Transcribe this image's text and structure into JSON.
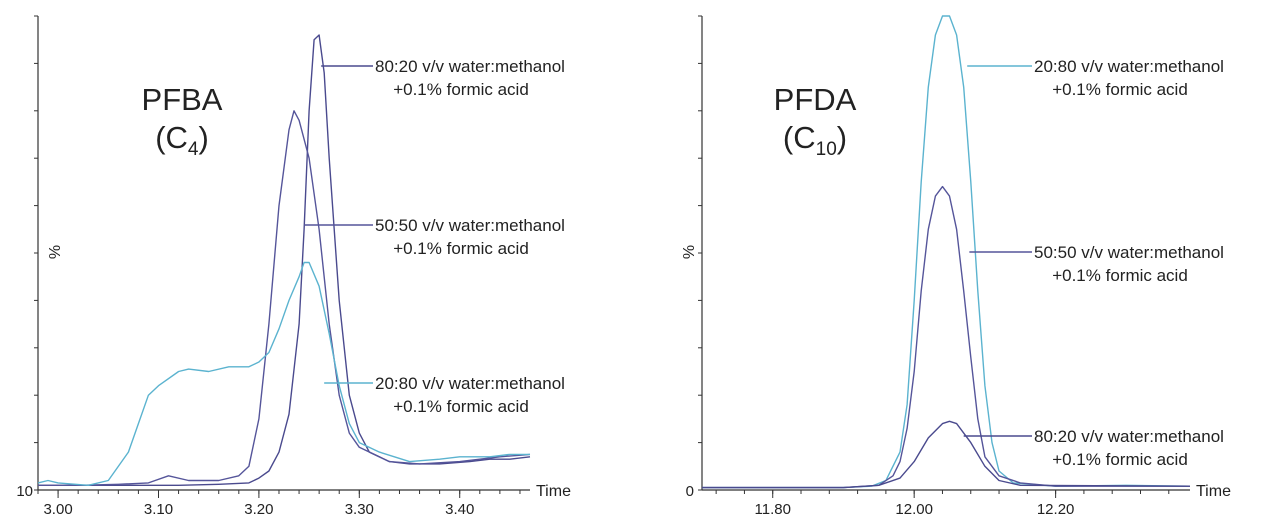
{
  "chart_data": [
    {
      "type": "line",
      "compound_name": "PFBA",
      "compound_formula": "(C",
      "compound_subscript": "4",
      "compound_close": ")",
      "xlabel": "Time",
      "ylabel": "%",
      "y_origin_label": "10",
      "xlim": [
        2.98,
        3.47
      ],
      "ylim": [
        0,
        100
      ],
      "x_ticks": [
        3.0,
        3.1,
        3.2,
        3.3,
        3.4
      ],
      "x_tick_labels": [
        "3.00",
        "3.10",
        "3.20",
        "3.30",
        "3.40"
      ],
      "series": [
        {
          "name": "80:20 v/v water:methanol",
          "name_line2": "+0.1% formic acid",
          "color": "#4a4a8e",
          "points": [
            [
              2.98,
              1
            ],
            [
              3.0,
              1
            ],
            [
              3.04,
              1
            ],
            [
              3.08,
              1
            ],
            [
              3.12,
              1
            ],
            [
              3.16,
              1.2
            ],
            [
              3.19,
              1.5
            ],
            [
              3.2,
              2.5
            ],
            [
              3.21,
              4
            ],
            [
              3.22,
              8
            ],
            [
              3.23,
              16
            ],
            [
              3.24,
              35
            ],
            [
              3.245,
              55
            ],
            [
              3.25,
              80
            ],
            [
              3.255,
              95
            ],
            [
              3.26,
              96
            ],
            [
              3.265,
              88
            ],
            [
              3.27,
              70
            ],
            [
              3.28,
              40
            ],
            [
              3.29,
              20
            ],
            [
              3.3,
              12
            ],
            [
              3.31,
              8
            ],
            [
              3.33,
              6
            ],
            [
              3.35,
              5.5
            ],
            [
              3.38,
              5.5
            ],
            [
              3.41,
              6
            ],
            [
              3.43,
              6.5
            ],
            [
              3.45,
              6.5
            ],
            [
              3.47,
              7
            ]
          ]
        },
        {
          "name": "50:50 v/v water:methanol",
          "name_line2": "+0.1% formic acid",
          "color": "#55559a",
          "points": [
            [
              2.98,
              1
            ],
            [
              3.02,
              1
            ],
            [
              3.06,
              1.2
            ],
            [
              3.09,
              1.5
            ],
            [
              3.11,
              3
            ],
            [
              3.13,
              2
            ],
            [
              3.16,
              2
            ],
            [
              3.18,
              3
            ],
            [
              3.19,
              5
            ],
            [
              3.2,
              15
            ],
            [
              3.21,
              35
            ],
            [
              3.22,
              60
            ],
            [
              3.23,
              76
            ],
            [
              3.235,
              80
            ],
            [
              3.24,
              78
            ],
            [
              3.25,
              70
            ],
            [
              3.26,
              55
            ],
            [
              3.27,
              35
            ],
            [
              3.28,
              20
            ],
            [
              3.29,
              12
            ],
            [
              3.3,
              9
            ],
            [
              3.33,
              6
            ],
            [
              3.36,
              5.5
            ],
            [
              3.4,
              6
            ],
            [
              3.44,
              7
            ],
            [
              3.47,
              7.5
            ]
          ]
        },
        {
          "name": "20:80 v/v water:methanol",
          "name_line2": "+0.1% formic acid",
          "color": "#5bb3cf",
          "points": [
            [
              2.98,
              1.5
            ],
            [
              2.99,
              2
            ],
            [
              3.0,
              1.5
            ],
            [
              3.03,
              1
            ],
            [
              3.05,
              2
            ],
            [
              3.07,
              8
            ],
            [
              3.08,
              14
            ],
            [
              3.09,
              20
            ],
            [
              3.1,
              22
            ],
            [
              3.12,
              25
            ],
            [
              3.13,
              25.5
            ],
            [
              3.15,
              25
            ],
            [
              3.17,
              26
            ],
            [
              3.19,
              26
            ],
            [
              3.2,
              27
            ],
            [
              3.21,
              29
            ],
            [
              3.22,
              34
            ],
            [
              3.23,
              40
            ],
            [
              3.24,
              45
            ],
            [
              3.245,
              48
            ],
            [
              3.25,
              48
            ],
            [
              3.26,
              43
            ],
            [
              3.27,
              33
            ],
            [
              3.28,
              22
            ],
            [
              3.29,
              14
            ],
            [
              3.3,
              10
            ],
            [
              3.32,
              8
            ],
            [
              3.35,
              6
            ],
            [
              3.38,
              6.5
            ],
            [
              3.4,
              7
            ],
            [
              3.43,
              7
            ],
            [
              3.45,
              7.5
            ],
            [
              3.47,
              7.5
            ]
          ]
        }
      ]
    },
    {
      "type": "line",
      "compound_name": "PFDA",
      "compound_formula": "(C",
      "compound_subscript": "10",
      "compound_close": ")",
      "xlabel": "Time",
      "ylabel": "%",
      "y_origin_label": "0",
      "xlim": [
        11.7,
        12.39
      ],
      "ylim": [
        0,
        100
      ],
      "x_ticks": [
        11.8,
        12.0,
        12.2
      ],
      "x_tick_labels": [
        "11.80",
        "12.00",
        "12.20"
      ],
      "series": [
        {
          "name": "20:80 v/v water:methanol",
          "name_line2": "+0.1% formic acid",
          "color": "#5bb3cf",
          "points": [
            [
              11.7,
              0.5
            ],
            [
              11.8,
              0.5
            ],
            [
              11.9,
              0.5
            ],
            [
              11.94,
              0.8
            ],
            [
              11.96,
              2
            ],
            [
              11.98,
              8
            ],
            [
              11.99,
              18
            ],
            [
              12.0,
              40
            ],
            [
              12.01,
              65
            ],
            [
              12.02,
              85
            ],
            [
              12.03,
              96
            ],
            [
              12.04,
              100
            ],
            [
              12.05,
              100
            ],
            [
              12.06,
              96
            ],
            [
              12.07,
              85
            ],
            [
              12.08,
              65
            ],
            [
              12.09,
              42
            ],
            [
              12.1,
              22
            ],
            [
              12.11,
              10
            ],
            [
              12.12,
              4
            ],
            [
              12.14,
              1.5
            ],
            [
              12.2,
              0.8
            ],
            [
              12.3,
              1
            ],
            [
              12.39,
              0.8
            ]
          ]
        },
        {
          "name": "50:50 v/v water:methanol",
          "name_line2": "+0.1% formic acid",
          "color": "#55559a",
          "points": [
            [
              11.7,
              0.5
            ],
            [
              11.9,
              0.5
            ],
            [
              11.95,
              1
            ],
            [
              11.97,
              3
            ],
            [
              11.98,
              6
            ],
            [
              11.99,
              13
            ],
            [
              12.0,
              25
            ],
            [
              12.01,
              42
            ],
            [
              12.02,
              55
            ],
            [
              12.03,
              62
            ],
            [
              12.04,
              64
            ],
            [
              12.05,
              62
            ],
            [
              12.06,
              55
            ],
            [
              12.07,
              42
            ],
            [
              12.08,
              28
            ],
            [
              12.09,
              15
            ],
            [
              12.1,
              7
            ],
            [
              12.12,
              3
            ],
            [
              12.15,
              1.5
            ],
            [
              12.2,
              0.8
            ],
            [
              12.39,
              0.8
            ]
          ]
        },
        {
          "name": "80:20 v/v water:methanol",
          "name_line2": "+0.1% formic acid",
          "color": "#4a4a8e",
          "points": [
            [
              11.7,
              0.5
            ],
            [
              11.9,
              0.5
            ],
            [
              11.95,
              1
            ],
            [
              11.98,
              2.5
            ],
            [
              12.0,
              6
            ],
            [
              12.02,
              11
            ],
            [
              12.04,
              14
            ],
            [
              12.05,
              14.5
            ],
            [
              12.06,
              14
            ],
            [
              12.08,
              10
            ],
            [
              12.1,
              5
            ],
            [
              12.12,
              2
            ],
            [
              12.15,
              1
            ],
            [
              12.39,
              0.8
            ]
          ]
        }
      ]
    }
  ]
}
